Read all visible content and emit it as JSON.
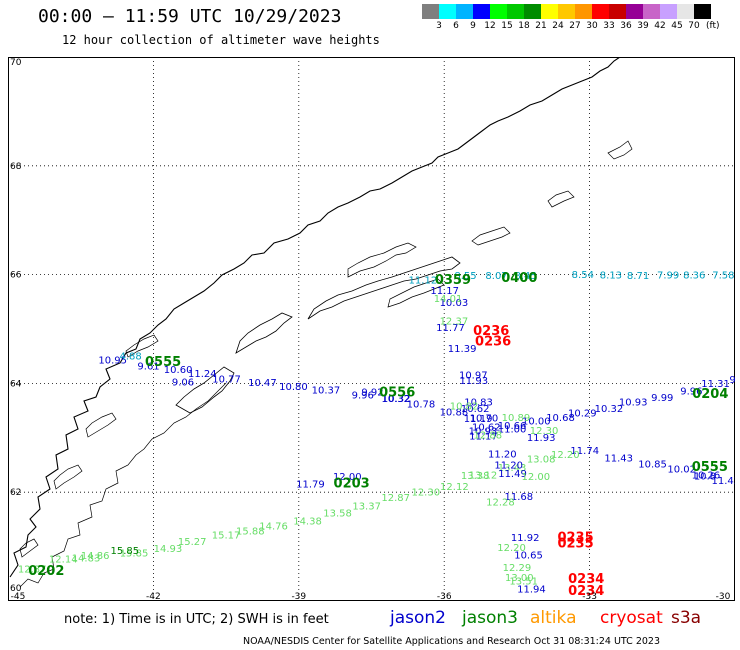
{
  "title": "00:00 – 11:59 UTC 10/29/2023",
  "subtitle": "12 hour collection of altimeter wave heights",
  "color_scale": {
    "unit": "(ft)",
    "bins": [
      {
        "color": "#7f7f7f",
        "label": "3"
      },
      {
        "color": "#00ffff",
        "label": "6"
      },
      {
        "color": "#00b4ff",
        "label": "9"
      },
      {
        "color": "#0000ff",
        "label": "12"
      },
      {
        "color": "#00ff00",
        "label": "15"
      },
      {
        "color": "#00c800",
        "label": "18"
      },
      {
        "color": "#008c00",
        "label": "21"
      },
      {
        "color": "#ffff00",
        "label": "24"
      },
      {
        "color": "#ffc800",
        "label": "27"
      },
      {
        "color": "#ff9600",
        "label": "30"
      },
      {
        "color": "#ff0000",
        "label": "33"
      },
      {
        "color": "#c80000",
        "label": "36"
      },
      {
        "color": "#960096",
        "label": "39"
      },
      {
        "color": "#c864c8",
        "label": "42"
      },
      {
        "color": "#c8a0ff",
        "label": "45"
      },
      {
        "color": "#e6e6e6",
        "label": "70"
      },
      {
        "color": "#000000",
        "label": ""
      }
    ]
  },
  "map": {
    "lon_range": [
      -45,
      -30
    ],
    "lat_range": [
      60,
      70
    ],
    "lon_ticks": [
      "-45",
      "-42",
      "-39",
      "-36",
      "-33",
      "-30"
    ],
    "lat_ticks": [
      "60",
      "62",
      "64",
      "66",
      "68",
      "70"
    ],
    "colors": {
      "jason2": "#0000cc",
      "jason3": "#008000",
      "altika": "#ff9900",
      "cryosat": "#ff0000",
      "s3a": "#880000",
      "teal": "#00a0c0",
      "lightgreen": "#66dd66"
    },
    "tracks": [
      {
        "sat": "jason2",
        "color": "#00a0c0",
        "points": [
          {
            "lon": -36.44,
            "lat": 65.84,
            "v": "11.12"
          },
          {
            "lon": -35.56,
            "lat": 65.92,
            "v": "8.55"
          },
          {
            "lon": -34.92,
            "lat": 65.92,
            "v": "8.07"
          },
          {
            "lon": -34.32,
            "lat": 65.92,
            "v": "8.45"
          },
          {
            "lon": -33.14,
            "lat": 65.94,
            "v": "8.54"
          },
          {
            "lon": -32.56,
            "lat": 65.93,
            "v": "8.13"
          },
          {
            "lon": -32.0,
            "lat": 65.92,
            "v": "8.71"
          },
          {
            "lon": -31.38,
            "lat": 65.93,
            "v": "7.99"
          },
          {
            "lon": -30.84,
            "lat": 65.93,
            "v": "8.36"
          },
          {
            "lon": -30.24,
            "lat": 65.93,
            "v": "7.58"
          }
        ]
      },
      {
        "sat": "jason2",
        "color": "#0000cc",
        "points": [
          {
            "lon": -42.84,
            "lat": 64.37,
            "v": "10.95"
          },
          {
            "lon": -42.1,
            "lat": 64.26,
            "v": "9.61"
          },
          {
            "lon": -41.49,
            "lat": 64.19,
            "v": "10.60"
          },
          {
            "lon": -40.99,
            "lat": 64.12,
            "v": "11.24"
          },
          {
            "lon": -40.49,
            "lat": 64.02,
            "v": "10.77"
          },
          {
            "lon": -39.75,
            "lat": 63.95,
            "v": "10.47"
          },
          {
            "lon": -39.11,
            "lat": 63.88,
            "v": "10.80"
          },
          {
            "lon": -38.44,
            "lat": 63.81,
            "v": "10.37"
          },
          {
            "lon": -37.68,
            "lat": 63.72,
            "v": "9.96"
          },
          {
            "lon": -37.0,
            "lat": 63.66,
            "v": "10.32"
          },
          {
            "lon": -36.48,
            "lat": 63.56,
            "v": "10.78"
          },
          {
            "lon": -35.8,
            "lat": 63.41,
            "v": "10.88"
          },
          {
            "lon": -35.3,
            "lat": 63.29,
            "v": "11.19"
          },
          {
            "lon": -34.6,
            "lat": 63.1,
            "v": "11.00"
          },
          {
            "lon": -34.0,
            "lat": 62.94,
            "v": "11.93"
          },
          {
            "lon": -33.1,
            "lat": 62.7,
            "v": "11.74"
          },
          {
            "lon": -32.4,
            "lat": 62.56,
            "v": "11.43"
          },
          {
            "lon": -31.7,
            "lat": 62.45,
            "v": "10.85"
          },
          {
            "lon": -31.1,
            "lat": 62.36,
            "v": "10.02"
          },
          {
            "lon": -30.6,
            "lat": 62.25,
            "v": "10.26"
          }
        ]
      },
      {
        "sat": "jason2",
        "color": "#0000cc",
        "points": [
          {
            "lon": -30.4,
            "lat": 63.93,
            "v": "11.31"
          },
          {
            "lon": -30.9,
            "lat": 63.8,
            "v": "9.96"
          },
          {
            "lon": -31.5,
            "lat": 63.68,
            "v": "9.99"
          },
          {
            "lon": -32.1,
            "lat": 63.59,
            "v": "10.93"
          },
          {
            "lon": -32.6,
            "lat": 63.47,
            "v": "10.32"
          },
          {
            "lon": -33.15,
            "lat": 63.39,
            "v": "10.29"
          },
          {
            "lon": -33.6,
            "lat": 63.31,
            "v": "10.68"
          },
          {
            "lon": -34.1,
            "lat": 63.24,
            "v": "10.00"
          },
          {
            "lon": -34.6,
            "lat": 63.16,
            "v": "10.66"
          }
        ]
      },
      {
        "sat": "jason3",
        "color": "#66dd66",
        "points": [
          {
            "lon": -44.5,
            "lat": 60.52,
            "v": "12.37"
          },
          {
            "lon": -43.86,
            "lat": 60.71,
            "v": "12.14"
          },
          {
            "lon": -43.2,
            "lat": 60.77,
            "v": "14.86"
          },
          {
            "lon": -42.4,
            "lat": 60.82,
            "v": "15.85"
          },
          {
            "lon": -41.7,
            "lat": 60.9,
            "v": "14.93"
          },
          {
            "lon": -41.2,
            "lat": 61.03,
            "v": "15.27"
          },
          {
            "lon": -40.5,
            "lat": 61.15,
            "v": "15.17"
          },
          {
            "lon": -40.0,
            "lat": 61.22,
            "v": "15.88"
          },
          {
            "lon": -39.52,
            "lat": 61.31,
            "v": "14.76"
          },
          {
            "lon": -38.82,
            "lat": 61.41,
            "v": "14.38"
          },
          {
            "lon": -38.2,
            "lat": 61.55,
            "v": "13.58"
          },
          {
            "lon": -37.6,
            "lat": 61.68,
            "v": "13.37"
          },
          {
            "lon": -37.0,
            "lat": 61.84,
            "v": "12.87"
          },
          {
            "lon": -36.38,
            "lat": 61.94,
            "v": "12.30"
          },
          {
            "lon": -35.79,
            "lat": 62.04,
            "v": "12.12"
          },
          {
            "lon": -35.2,
            "lat": 62.25,
            "v": "13.12"
          },
          {
            "lon": -34.6,
            "lat": 62.39,
            "v": "13.43"
          },
          {
            "lon": -34.0,
            "lat": 62.55,
            "v": "13.08"
          },
          {
            "lon": -33.5,
            "lat": 62.63,
            "v": "12.20"
          }
        ]
      },
      {
        "sat": "jason3",
        "color": "#0000cc",
        "points": [
          {
            "lon": -35.99,
            "lat": 65.64,
            "v": "11.17"
          },
          {
            "lon": -35.8,
            "lat": 65.42,
            "v": "10.03"
          },
          {
            "lon": -35.87,
            "lat": 64.96,
            "v": "11.77"
          },
          {
            "lon": -35.63,
            "lat": 64.58,
            "v": "11.39"
          },
          {
            "lon": -35.4,
            "lat": 64.09,
            "v": "10.97"
          },
          {
            "lon": -35.39,
            "lat": 63.99,
            "v": "11.93"
          },
          {
            "lon": -35.29,
            "lat": 63.59,
            "v": "10.83"
          },
          {
            "lon": -35.36,
            "lat": 63.47,
            "v": "10.62"
          },
          {
            "lon": -35.18,
            "lat": 63.3,
            "v": "10.70"
          },
          {
            "lon": -35.13,
            "lat": 63.13,
            "v": "10.62"
          },
          {
            "lon": -35.2,
            "lat": 63.06,
            "v": "10.93"
          },
          {
            "lon": -35.19,
            "lat": 62.97,
            "v": "11.17"
          },
          {
            "lon": -34.8,
            "lat": 62.64,
            "v": "11.20"
          },
          {
            "lon": -34.67,
            "lat": 62.44,
            "v": "11.20"
          },
          {
            "lon": -34.59,
            "lat": 62.28,
            "v": "11.49"
          },
          {
            "lon": -34.46,
            "lat": 61.86,
            "v": "11.68"
          },
          {
            "lon": -34.33,
            "lat": 61.1,
            "v": "11.92"
          },
          {
            "lon": -34.26,
            "lat": 60.78,
            "v": "10.65"
          },
          {
            "lon": -34.2,
            "lat": 60.16,
            "v": "11.94"
          }
        ]
      },
      {
        "sat": "jason3",
        "color": "#66dd66",
        "points": [
          {
            "lon": -35.92,
            "lat": 65.5,
            "v": "14.01"
          },
          {
            "lon": -35.8,
            "lat": 65.08,
            "v": "12.37"
          },
          {
            "lon": -34.84,
            "lat": 61.76,
            "v": "12.28"
          },
          {
            "lon": -34.61,
            "lat": 60.92,
            "v": "12.20"
          },
          {
            "lon": -34.5,
            "lat": 60.55,
            "v": "12.29"
          },
          {
            "lon": -34.45,
            "lat": 60.37,
            "v": "13.00"
          },
          {
            "lon": -34.36,
            "lat": 60.3,
            "v": "13.51"
          },
          {
            "lon": -34.11,
            "lat": 62.22,
            "v": "12.00"
          },
          {
            "lon": -33.94,
            "lat": 63.07,
            "v": "12.30"
          },
          {
            "lon": -34.52,
            "lat": 63.31,
            "v": "10.89"
          },
          {
            "lon": -35.59,
            "lat": 63.52,
            "v": "10.82"
          }
        ]
      }
    ],
    "time_labels": [
      {
        "text": "0400",
        "lon": -34.45,
        "lat": 65.86,
        "color": "#008000"
      },
      {
        "text": "0359",
        "lon": -35.82,
        "lat": 65.83,
        "color": "#008000"
      },
      {
        "text": "0555",
        "lon": -41.8,
        "lat": 64.32,
        "color": "#008000"
      },
      {
        "text": "0556",
        "lon": -36.97,
        "lat": 63.76,
        "color": "#008000"
      },
      {
        "text": "0204",
        "lon": -30.51,
        "lat": 63.73,
        "color": "#008000"
      },
      {
        "text": "0555",
        "lon": -30.52,
        "lat": 62.39,
        "color": "#008000"
      },
      {
        "text": "0203",
        "lon": -37.91,
        "lat": 62.09,
        "color": "#008000"
      },
      {
        "text": "0202",
        "lon": -44.21,
        "lat": 60.48,
        "color": "#008000"
      },
      {
        "text": "0236",
        "lon": -35.03,
        "lat": 64.89,
        "color": "#ff0000"
      },
      {
        "text": "0236",
        "lon": -34.99,
        "lat": 64.7,
        "color": "#ff0000"
      },
      {
        "text": "0235",
        "lon": -33.29,
        "lat": 61.09,
        "color": "#ff0000"
      },
      {
        "text": "0235",
        "lon": -33.29,
        "lat": 60.98,
        "color": "#ff0000"
      },
      {
        "text": "0234",
        "lon": -33.07,
        "lat": 60.33,
        "color": "#ff0000"
      },
      {
        "text": "0234",
        "lon": -33.07,
        "lat": 60.11,
        "color": "#ff0000"
      }
    ],
    "extra_labels": [
      {
        "text": "9",
        "lon": -30.05,
        "lat": 64.01,
        "color": "#0000cc"
      },
      {
        "text": "10.8",
        "lon": -30.62,
        "lat": 62.23,
        "color": "#0000cc"
      },
      {
        "text": "11.43",
        "lon": -30.19,
        "lat": 62.15,
        "color": "#0000cc"
      },
      {
        "text": "11.79",
        "lon": -38.76,
        "lat": 62.09,
        "color": "#0000cc"
      },
      {
        "text": "12.00",
        "lon": -38.0,
        "lat": 62.22,
        "color": "#0000cc"
      },
      {
        "text": "4.88",
        "lon": -42.47,
        "lat": 64.44,
        "color": "#00a0c0"
      },
      {
        "text": "9.06",
        "lon": -41.39,
        "lat": 63.96,
        "color": "#0000cc"
      },
      {
        "text": "9.92",
        "lon": -37.48,
        "lat": 63.78,
        "color": "#0000cc"
      },
      {
        "text": "10.32",
        "lon": -36.99,
        "lat": 63.66,
        "color": "#0000cc"
      },
      {
        "text": "12.88",
        "lon": -35.1,
        "lat": 62.99,
        "color": "#66dd66"
      },
      {
        "text": "14.83",
        "lon": -43.39,
        "lat": 60.73,
        "color": "#66dd66"
      },
      {
        "text": "15.85",
        "lon": -42.59,
        "lat": 60.86,
        "color": "#008000"
      },
      {
        "text": "13.38",
        "lon": -35.36,
        "lat": 62.24,
        "color": "#66dd66"
      }
    ]
  },
  "note": "note: 1) Time is in UTC; 2) SWH is in feet",
  "legend": [
    {
      "name": "jason2",
      "color": "#0000cc"
    },
    {
      "name": "jason3",
      "color": "#008000"
    },
    {
      "name": "altika",
      "color": "#ff9900"
    },
    {
      "name": "cryosat",
      "color": "#ff0000"
    },
    {
      "name": "s3a",
      "color": "#880000"
    }
  ],
  "footer": "NOAA/NESDIS Center for Satellite Applications and Research    Oct 31 08:31:24 UTC 2023"
}
